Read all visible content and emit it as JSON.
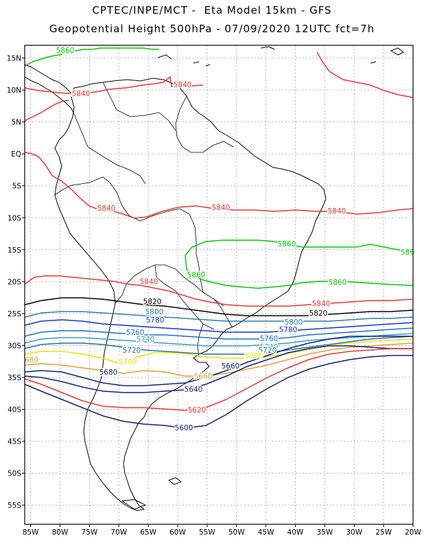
{
  "title_line1": "CPTEC/INPE/MCT -  Eta Model 15km - GFS",
  "title_line2": "Geopotential Height 500hPa - 07/09/2020 12UTC fct=7h",
  "axes": {
    "lon_ticks": [
      "85W",
      "80W",
      "75W",
      "70W",
      "65W",
      "60W",
      "55W",
      "50W",
      "45W",
      "40W",
      "35W",
      "30W",
      "25W",
      "20W"
    ],
    "lat_ticks": [
      "15N",
      "10N",
      "5N",
      "EQ",
      "5S",
      "10S",
      "15S",
      "20S",
      "25S",
      "30S",
      "35S",
      "40S",
      "45S",
      "50S",
      "55S"
    ],
    "lon_range": [
      -86,
      -20
    ],
    "lat_range": [
      17,
      -58
    ],
    "grid": "dotted"
  },
  "colors": {
    "c5860": "#00cc00",
    "c5840": "#ee3333",
    "c5820": "#000000",
    "c5800": "#2a7fa8",
    "c5780": "#1430e6",
    "c5760": "#1a6fd0",
    "c5740": "#2ea0d0",
    "c5720": "#2070a0",
    "c5700": "#f0e000",
    "c5680": "#e0a030",
    "c5660": "#102080",
    "c5640": "#102080",
    "c5620": "#ee3333",
    "c5600": "#102070"
  },
  "contour_labels": [
    {
      "text": "5860",
      "color": "#00cc00"
    },
    {
      "text": "5840",
      "color": "#ee3333"
    },
    {
      "text": "5840",
      "color": "#ee3333"
    },
    {
      "text": "5840",
      "color": "#ee3333"
    },
    {
      "text": "5840",
      "color": "#ee3333"
    },
    {
      "text": "5840",
      "color": "#ee3333"
    },
    {
      "text": "5860",
      "color": "#00cc00"
    },
    {
      "text": "5860",
      "color": "#00cc00"
    },
    {
      "text": "5860",
      "color": "#00cc00"
    },
    {
      "text": "586",
      "color": "#00cc00"
    },
    {
      "text": "5840",
      "color": "#ee3333"
    },
    {
      "text": "5840",
      "color": "#ee3333"
    },
    {
      "text": "5820",
      "color": "#000000"
    },
    {
      "text": "5820",
      "color": "#000000"
    },
    {
      "text": "5800",
      "color": "#2a7fa8"
    },
    {
      "text": "5800",
      "color": "#2a7fa8"
    },
    {
      "text": "5780",
      "color": "#1430e6"
    },
    {
      "text": "5780",
      "color": "#1430e6"
    },
    {
      "text": "5760",
      "color": "#1a6fd0"
    },
    {
      "text": "5760",
      "color": "#1a6fd0"
    },
    {
      "text": "5740",
      "color": "#2ea0d0"
    },
    {
      "text": "5740",
      "color": "#2ea0d0"
    },
    {
      "text": "5720",
      "color": "#2070a0"
    },
    {
      "text": "5720",
      "color": "#2070a0"
    },
    {
      "text": "5700",
      "color": "#f0e000"
    },
    {
      "text": "5700",
      "color": "#f0e000"
    },
    {
      "text": "680",
      "color": "#e0a030"
    },
    {
      "text": "5680",
      "color": "#102080"
    },
    {
      "text": "5660",
      "color": "#e0a030"
    },
    {
      "text": "5660",
      "color": "#102080"
    },
    {
      "text": "5640",
      "color": "#102080"
    },
    {
      "text": "5620",
      "color": "#ee3333"
    },
    {
      "text": "5600",
      "color": "#102070"
    }
  ]
}
